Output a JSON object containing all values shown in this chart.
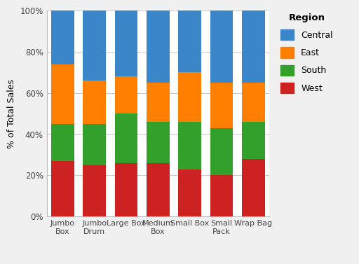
{
  "categories": [
    "Jumbo\nBox",
    "Jumbo\nDrum",
    "Large Box",
    "Medium\nBox",
    "Small Box",
    "Small\nPack",
    "Wrap Bag"
  ],
  "regions": [
    "West",
    "South",
    "East",
    "Central"
  ],
  "colors": [
    "#cc2222",
    "#33a02c",
    "#ff8000",
    "#3a86c8"
  ],
  "values": {
    "West": [
      0.27,
      0.25,
      0.26,
      0.26,
      0.23,
      0.2,
      0.28
    ],
    "South": [
      0.18,
      0.2,
      0.24,
      0.2,
      0.23,
      0.23,
      0.18
    ],
    "East": [
      0.29,
      0.21,
      0.18,
      0.19,
      0.24,
      0.22,
      0.19
    ],
    "Central": [
      0.26,
      0.34,
      0.32,
      0.35,
      0.3,
      0.35,
      0.35
    ]
  },
  "ylabel": "% of Total Sales",
  "yticks": [
    0.0,
    0.2,
    0.4,
    0.6,
    0.8,
    1.0
  ],
  "yticklabels": [
    "0%",
    "20%",
    "40%",
    "60%",
    "80%",
    "100%"
  ],
  "legend_title": "Region",
  "background_color": "#f0f0f0",
  "plot_bg_color": "#ffffff",
  "bar_width": 0.72,
  "legend_colors": [
    "#3a86c8",
    "#ff8000",
    "#33a02c",
    "#cc2222"
  ],
  "legend_labels": [
    "Central",
    "East",
    "South",
    "West"
  ]
}
